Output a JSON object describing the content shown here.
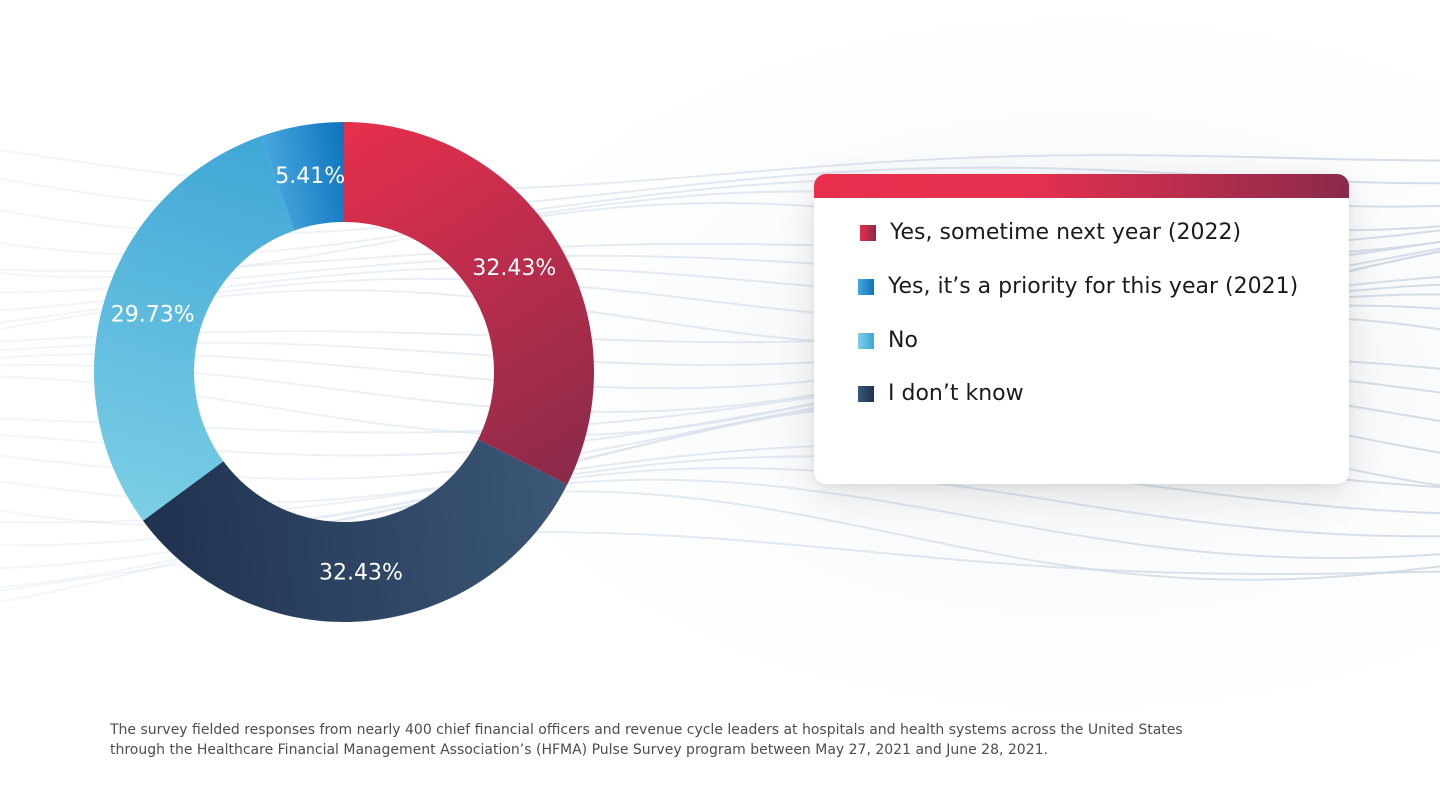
{
  "chart_data": {
    "type": "pie",
    "variant": "donut",
    "start": "12 o'clock",
    "direction": "clockwise",
    "slices": [
      {
        "key": "yes2022",
        "label": "Yes, sometime next year (2022)",
        "value": 32.43,
        "value_label": "32.43%",
        "color_start": "#e72f4d",
        "color_end": "#8a2a4a"
      },
      {
        "key": "dontknow",
        "label": "I don’t know",
        "value": 32.43,
        "value_label": "32.43%",
        "color_start": "#3b5876",
        "color_end": "#1f3250"
      },
      {
        "key": "no",
        "label": "No",
        "value": 29.73,
        "value_label": "29.73%",
        "color_start": "#7ccfe6",
        "color_end": "#3fa6d6"
      },
      {
        "key": "yes2021",
        "label": "Yes, it’s a priority for this year (2021)",
        "value": 5.41,
        "value_label": "5.41%",
        "color_start": "#48a7dd",
        "color_end": "#0e73bd"
      }
    ],
    "legend": {
      "placement": "right",
      "items": [
        {
          "label": "Yes, sometime next year (2022)",
          "color": "#e72f4d"
        },
        {
          "label": "Yes, it’s a priority for this year (2021)",
          "color": "#1270b8"
        },
        {
          "label": "No",
          "color": "#8dd6ec"
        },
        {
          "label": "I don’t know",
          "color": "#233a58"
        }
      ]
    }
  },
  "footnote": {
    "line1": "The survey fielded responses from nearly 400 chief financial officers and revenue cycle leaders at hospitals and health systems across the United States",
    "line2": "through the Healthcare Financial Management Association’s (HFMA) Pulse Survey program between May 27, 2021 and June 28, 2021."
  }
}
